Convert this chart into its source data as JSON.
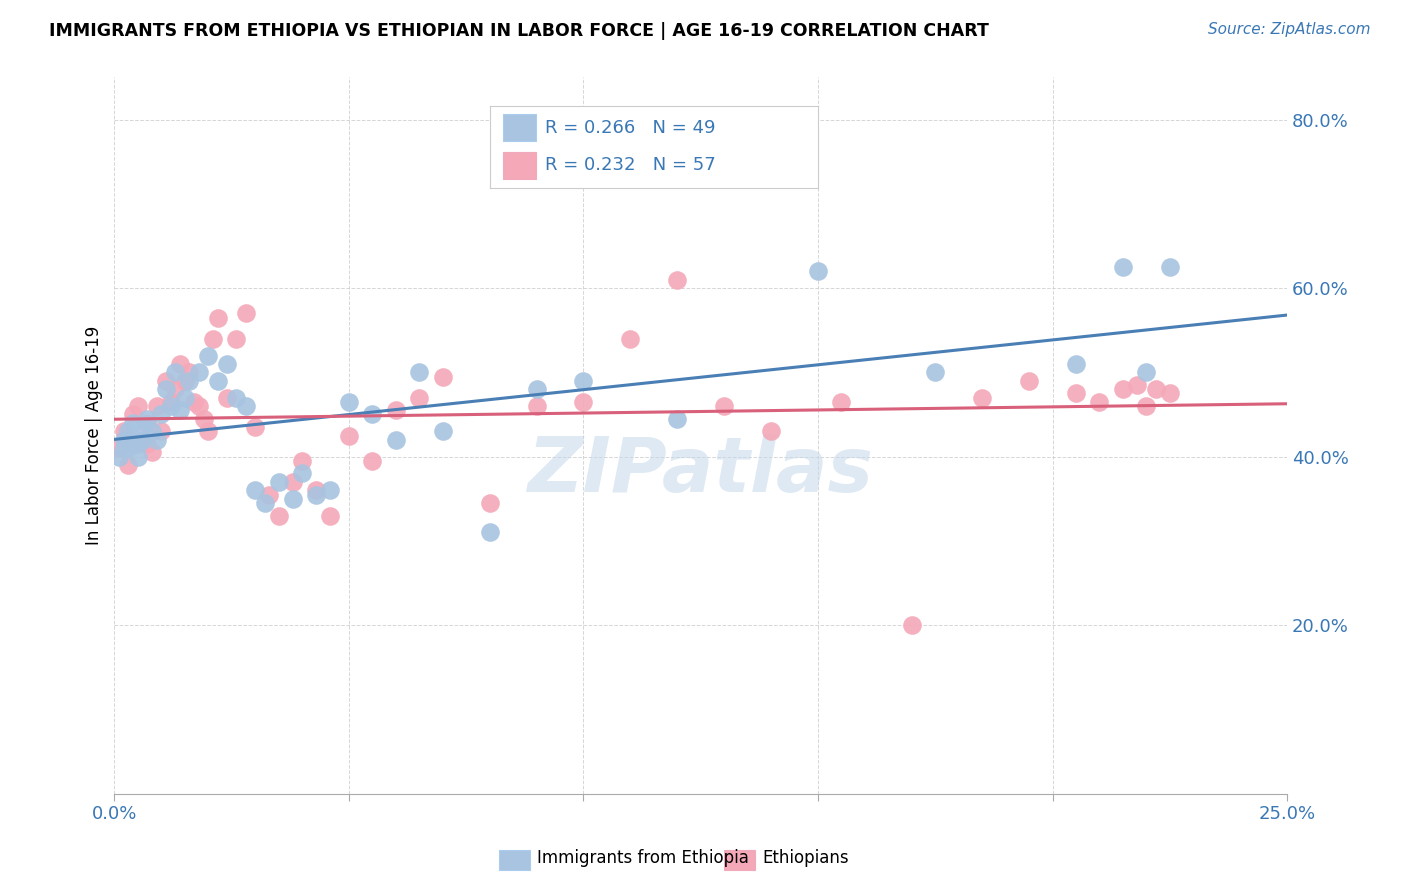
{
  "title": "IMMIGRANTS FROM ETHIOPIA VS ETHIOPIAN IN LABOR FORCE | AGE 16-19 CORRELATION CHART",
  "source_text": "Source: ZipAtlas.com",
  "ylabel": "In Labor Force | Age 16-19",
  "xlim": [
    0.0,
    0.25
  ],
  "ylim": [
    0.0,
    0.85
  ],
  "yticks": [
    0.2,
    0.4,
    0.6,
    0.8
  ],
  "ytick_labels": [
    "20.0%",
    "40.0%",
    "60.0%",
    "80.0%"
  ],
  "xticks": [
    0.0,
    0.05,
    0.1,
    0.15,
    0.2,
    0.25
  ],
  "xtick_labels": [
    "0.0%",
    "",
    "",
    "",
    "",
    "25.0%"
  ],
  "blue_R": 0.266,
  "blue_N": 49,
  "pink_R": 0.232,
  "pink_N": 57,
  "blue_color": "#a8c4e0",
  "pink_color": "#f4a8b8",
  "line_blue": "#4a7fb5",
  "line_pink": "#d9607a",
  "watermark": "ZIPatlas",
  "legend_label_blue": "Immigrants from Ethiopia",
  "legend_label_pink": "Ethiopians",
  "blue_x": [
    0.001,
    0.002,
    0.002,
    0.003,
    0.003,
    0.004,
    0.004,
    0.005,
    0.005,
    0.006,
    0.006,
    0.007,
    0.008,
    0.009,
    0.01,
    0.011,
    0.012,
    0.013,
    0.014,
    0.015,
    0.016,
    0.018,
    0.02,
    0.022,
    0.024,
    0.026,
    0.028,
    0.03,
    0.032,
    0.035,
    0.038,
    0.04,
    0.043,
    0.046,
    0.05,
    0.055,
    0.06,
    0.065,
    0.07,
    0.08,
    0.09,
    0.1,
    0.12,
    0.15,
    0.175,
    0.205,
    0.215,
    0.22,
    0.225
  ],
  "blue_y": [
    0.4,
    0.41,
    0.42,
    0.41,
    0.43,
    0.42,
    0.44,
    0.4,
    0.415,
    0.42,
    0.435,
    0.445,
    0.43,
    0.42,
    0.45,
    0.48,
    0.46,
    0.5,
    0.455,
    0.47,
    0.49,
    0.5,
    0.52,
    0.49,
    0.51,
    0.47,
    0.46,
    0.36,
    0.345,
    0.37,
    0.35,
    0.38,
    0.355,
    0.36,
    0.465,
    0.45,
    0.42,
    0.5,
    0.43,
    0.31,
    0.48,
    0.49,
    0.445,
    0.62,
    0.5,
    0.51,
    0.625,
    0.5,
    0.625
  ],
  "pink_x": [
    0.001,
    0.002,
    0.003,
    0.004,
    0.004,
    0.005,
    0.006,
    0.007,
    0.007,
    0.008,
    0.009,
    0.01,
    0.011,
    0.012,
    0.013,
    0.014,
    0.015,
    0.016,
    0.017,
    0.018,
    0.019,
    0.02,
    0.021,
    0.022,
    0.024,
    0.026,
    0.028,
    0.03,
    0.033,
    0.035,
    0.038,
    0.04,
    0.043,
    0.046,
    0.05,
    0.055,
    0.06,
    0.065,
    0.07,
    0.08,
    0.09,
    0.1,
    0.11,
    0.12,
    0.13,
    0.14,
    0.155,
    0.17,
    0.185,
    0.195,
    0.205,
    0.21,
    0.215,
    0.218,
    0.22,
    0.222,
    0.225
  ],
  "pink_y": [
    0.41,
    0.43,
    0.39,
    0.415,
    0.45,
    0.46,
    0.42,
    0.44,
    0.415,
    0.405,
    0.46,
    0.43,
    0.49,
    0.465,
    0.48,
    0.51,
    0.49,
    0.5,
    0.465,
    0.46,
    0.445,
    0.43,
    0.54,
    0.565,
    0.47,
    0.54,
    0.57,
    0.435,
    0.355,
    0.33,
    0.37,
    0.395,
    0.36,
    0.33,
    0.425,
    0.395,
    0.455,
    0.47,
    0.495,
    0.345,
    0.46,
    0.465,
    0.54,
    0.61,
    0.46,
    0.43,
    0.465,
    0.2,
    0.47,
    0.49,
    0.475,
    0.465,
    0.48,
    0.485,
    0.46,
    0.48,
    0.475
  ]
}
